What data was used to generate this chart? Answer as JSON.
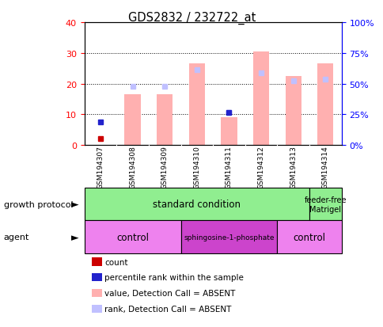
{
  "title": "GDS2832 / 232722_at",
  "samples": [
    "GSM194307",
    "GSM194308",
    "GSM194309",
    "GSM194310",
    "GSM194311",
    "GSM194312",
    "GSM194313",
    "GSM194314"
  ],
  "count_values": [
    2,
    0,
    0,
    0,
    0,
    0,
    0,
    0
  ],
  "percentile_rank": [
    7.5,
    0,
    0,
    0,
    10.5,
    0,
    0,
    0
  ],
  "absent_value": [
    0,
    16.5,
    16.5,
    26.5,
    9,
    30.5,
    22.5,
    26.5
  ],
  "absent_rank": [
    0,
    19,
    19,
    24.5,
    10.5,
    23.5,
    21,
    21.5
  ],
  "ylim_left": [
    0,
    40
  ],
  "ylim_right": [
    0,
    100
  ],
  "yticks_left": [
    0,
    10,
    20,
    30,
    40
  ],
  "yticks_right": [
    0,
    25,
    50,
    75,
    100
  ],
  "ytick_labels_right": [
    "0%",
    "25%",
    "50%",
    "75%",
    "100%"
  ],
  "bar_color_absent": "#ffb0b0",
  "bar_color_absent_rank": "#c0c0ff",
  "dot_color_count": "#cc0000",
  "dot_color_rank": "#2222cc",
  "sample_bg_color": "#cccccc",
  "growth_green": "#90ee90",
  "agent_light": "#ee82ee",
  "agent_dark": "#cc44cc",
  "legend_items": [
    {
      "color": "#cc0000",
      "label": "count"
    },
    {
      "color": "#2222cc",
      "label": "percentile rank within the sample"
    },
    {
      "color": "#ffb0b0",
      "label": "value, Detection Call = ABSENT"
    },
    {
      "color": "#c0c0ff",
      "label": "rank, Detection Call = ABSENT"
    }
  ],
  "left_labels": [
    "growth protocol",
    "agent"
  ],
  "growth_groups": [
    {
      "label": "standard condition",
      "cols": [
        0,
        1,
        2,
        3,
        4,
        5,
        6
      ]
    },
    {
      "label": "feeder-free\nMatrigel",
      "cols": [
        7
      ]
    }
  ],
  "agent_groups": [
    {
      "label": "control",
      "cols": [
        0,
        1,
        2
      ],
      "dark": false
    },
    {
      "label": "sphingosine-1-phosphate",
      "cols": [
        3,
        4,
        5
      ],
      "dark": true
    },
    {
      "label": "control",
      "cols": [
        6,
        7
      ],
      "dark": false
    }
  ]
}
